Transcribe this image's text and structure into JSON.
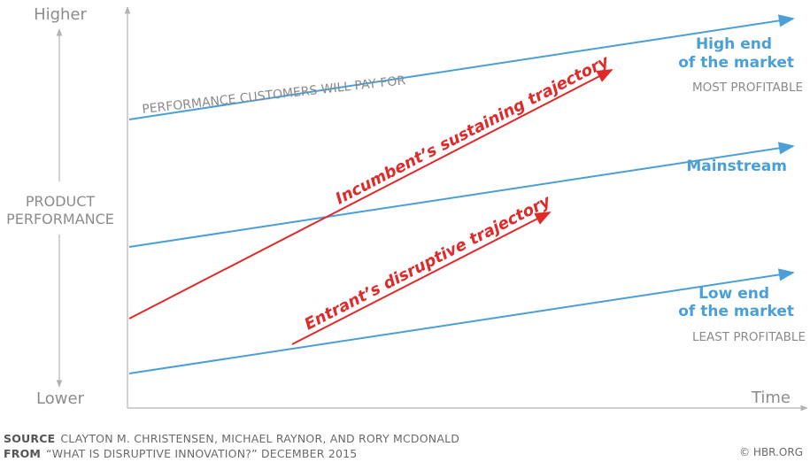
{
  "axes": {
    "y_high": "Higher",
    "y_low": "Lower",
    "y_label_line1": "PRODUCT",
    "y_label_line2": "PERFORMANCE",
    "x_label": "Time"
  },
  "lines": {
    "performance_label": "PERFORMANCE CUSTOMERS WILL PAY FOR",
    "high_end_line1": "High end",
    "high_end_line2": "of the market",
    "high_end_sub": "MOST PROFITABLE",
    "mainstream": "Mainstream",
    "low_end_line1": "Low end",
    "low_end_line2": "of the market",
    "low_end_sub": "LEAST PROFITABLE"
  },
  "trajectories": {
    "incumbent": "Incumbent’s sustaining trajectory",
    "entrant": "Entrant’s disruptive trajectory"
  },
  "footer": {
    "source_key": "SOURCE",
    "source_value": "CLAYTON M. CHRISTENSEN, MICHAEL RAYNOR, AND RORY MCDONALD",
    "from_key": "FROM",
    "from_value": "“WHAT IS DISRUPTIVE INNOVATION?” DECEMBER 2015",
    "copyright": "© HBR.ORG"
  },
  "colors": {
    "blue": "#4a9fd6",
    "red": "#e02a2a",
    "grey": "#8c8c8c"
  }
}
